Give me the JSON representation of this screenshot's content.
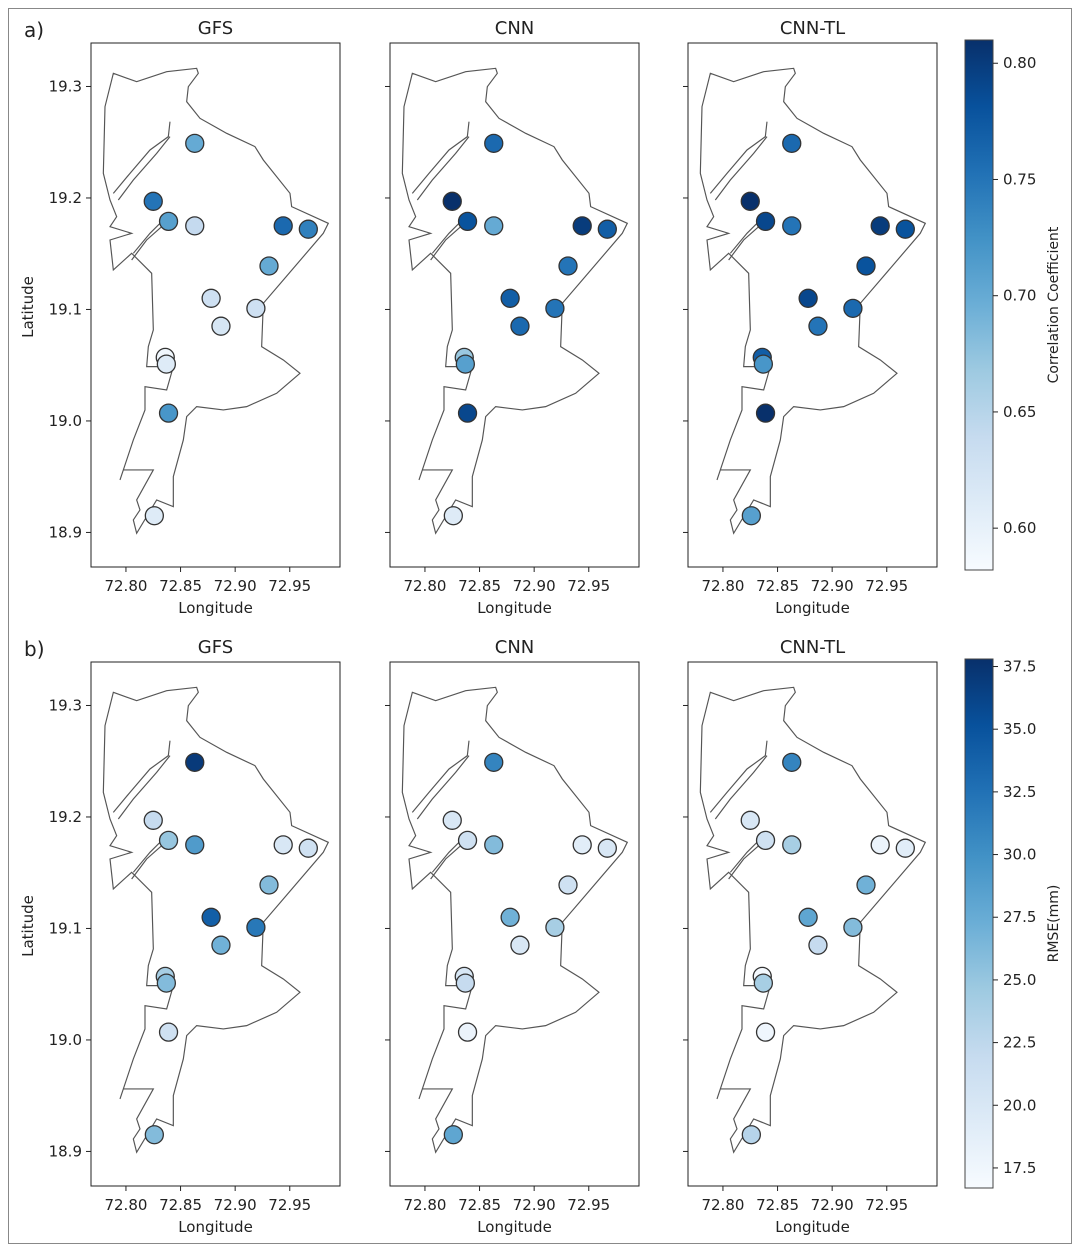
{
  "chart_data": {
    "type": "scatter",
    "xlabel": "Longitude",
    "ylabel": "Latitude",
    "xlim": [
      72.768,
      72.996
    ],
    "ylim": [
      18.869,
      19.339
    ],
    "xticks": [
      72.8,
      72.85,
      72.9,
      72.95
    ],
    "xtick_labels": [
      "72.80",
      "72.85",
      "72.90",
      "72.95"
    ],
    "yticks": [
      18.9,
      19.0,
      19.1,
      19.2,
      19.3
    ],
    "ytick_labels": [
      "18.9",
      "19.0",
      "19.1",
      "19.2",
      "19.3"
    ],
    "colormap": "Blues",
    "stations": {
      "lon": [
        72.863,
        72.825,
        72.839,
        72.863,
        72.944,
        72.967,
        72.931,
        72.878,
        72.887,
        72.919,
        72.836,
        72.837,
        72.839,
        72.826
      ],
      "lat": [
        19.249,
        19.197,
        19.179,
        19.175,
        19.175,
        19.172,
        19.139,
        19.11,
        19.085,
        19.101,
        19.057,
        19.051,
        19.007,
        18.915
      ]
    },
    "rows": [
      {
        "label": "a)",
        "colorbar": {
          "label": "Correlation Coefficient",
          "range": [
            0.582,
            0.81
          ],
          "ticks": [
            0.6,
            0.65,
            0.7,
            0.75,
            0.8
          ],
          "tick_labels": [
            "0.60",
            "0.65",
            "0.70",
            "0.75",
            "0.80"
          ]
        },
        "panels": [
          {
            "title": "GFS",
            "values": [
              0.7,
              0.75,
              0.71,
              0.64,
              0.76,
              0.74,
              0.7,
              0.63,
              0.62,
              0.63,
              0.59,
              0.61,
              0.72,
              0.61
            ]
          },
          {
            "title": "CNN",
            "values": [
              0.76,
              0.81,
              0.78,
              0.7,
              0.8,
              0.77,
              0.75,
              0.77,
              0.76,
              0.75,
              0.67,
              0.71,
              0.79,
              0.61
            ]
          },
          {
            "title": "CNN-TL",
            "values": [
              0.76,
              0.81,
              0.79,
              0.75,
              0.8,
              0.78,
              0.78,
              0.79,
              0.75,
              0.76,
              0.77,
              0.72,
              0.81,
              0.71
            ]
          }
        ]
      },
      {
        "label": "b)",
        "colorbar": {
          "label": "RMSE(mm)",
          "range": [
            16.7,
            37.8
          ],
          "ticks": [
            17.5,
            20.0,
            22.5,
            25.0,
            27.5,
            30.0,
            32.5,
            35.0,
            37.5
          ],
          "tick_labels": [
            "17.5",
            "20.0",
            "22.5",
            "25.0",
            "27.5",
            "30.0",
            "32.5",
            "35.0",
            "37.5"
          ]
        },
        "panels": [
          {
            "title": "GFS",
            "values": [
              37,
              22,
              25,
              29,
              20,
              21,
              26,
              34,
              27,
              32,
              24,
              26,
              21,
              26
            ]
          },
          {
            "title": "CNN",
            "values": [
              31,
              20,
              21,
              26,
              19,
              20,
              21,
              27,
              20,
              24,
              20,
              22,
              18,
              28
            ]
          },
          {
            "title": "CNN-TL",
            "values": [
              31,
              20,
              21,
              24,
              18,
              19,
              27,
              28,
              22,
              26,
              17,
              24,
              17.5,
              23
            ]
          }
        ]
      }
    ]
  }
}
